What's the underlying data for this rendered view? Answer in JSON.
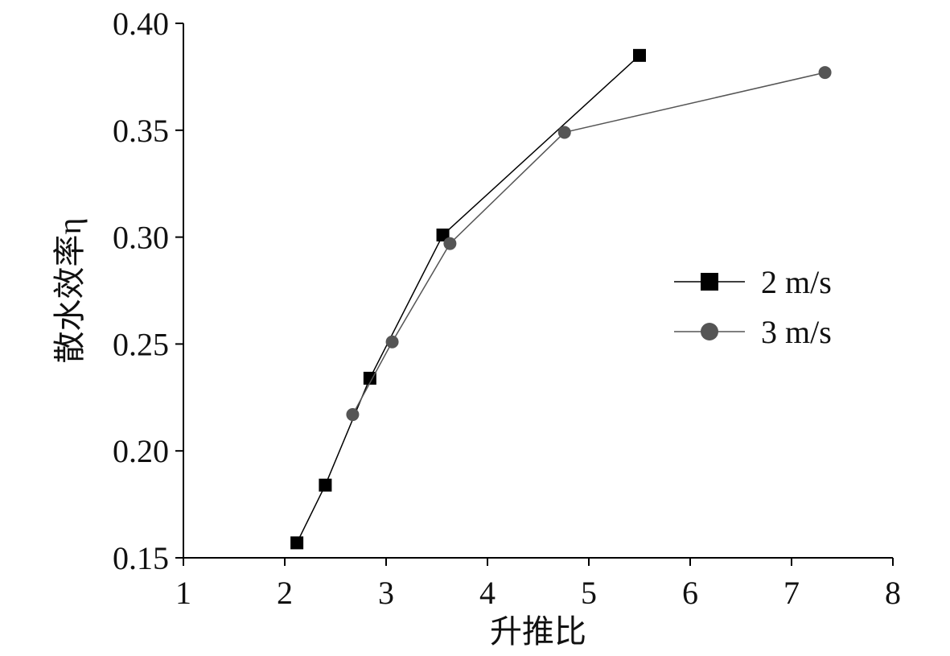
{
  "chart_data": {
    "type": "line",
    "x_label": "升推比",
    "y_label": "散水效率η",
    "xlim": [
      1,
      8
    ],
    "xticks": [
      1,
      2,
      3,
      4,
      5,
      6,
      7,
      8
    ],
    "ylim": [
      0.15,
      0.4
    ],
    "yticks": [
      0.15,
      {
        "value": 0.2,
        "label": "0.20"
      },
      0.25,
      {
        "value": 0.3,
        "label": "0.30"
      },
      0.35,
      {
        "value": 0.4,
        "label": "0.40"
      }
    ],
    "grid": false,
    "legend": "right",
    "series": [
      {
        "name": "2 m/s",
        "color": "#000000",
        "marker": "square",
        "x": [
          2.12,
          2.4,
          2.84,
          3.56,
          5.5
        ],
        "values": [
          0.157,
          0.184,
          0.234,
          0.301,
          0.385
        ]
      },
      {
        "name": "3 m/s",
        "color": "#555555",
        "marker": "circle",
        "x": [
          2.67,
          3.06,
          3.63,
          4.76,
          7.33
        ],
        "values": [
          0.217,
          0.251,
          0.297,
          0.349,
          0.377
        ]
      }
    ]
  }
}
